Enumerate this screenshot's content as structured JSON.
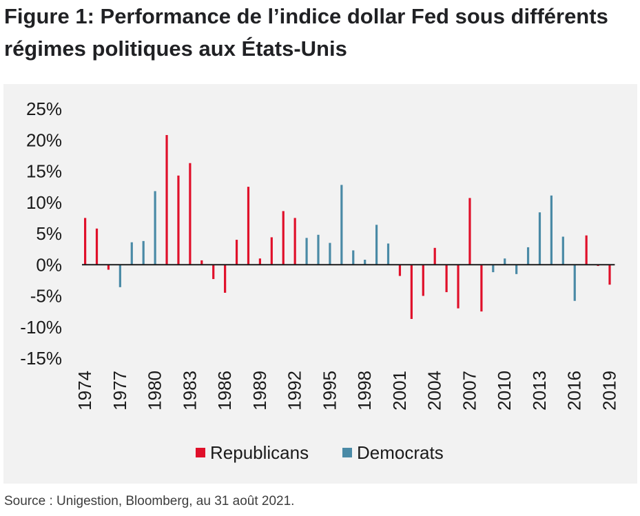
{
  "title": "Figure 1: Performance de l’indice dollar Fed sous différents régimes politiques aux États-Unis",
  "source": "Source : Unigestion, Bloomberg, au 31 août 2021.",
  "colors": {
    "Republicans": "#e0102a",
    "Democrats": "#4a8aa6",
    "panel": "#f2f2f2",
    "axis": "#1a1a1a"
  },
  "chart_data": {
    "type": "bar",
    "title": "",
    "xlabel": "",
    "ylabel": "",
    "ylim": [
      -15,
      25
    ],
    "y_ticks": [
      "25%",
      "20%",
      "15%",
      "10%",
      "5%",
      "0%",
      "-5%",
      "-10%",
      "-15%"
    ],
    "y_tick_values": [
      25,
      20,
      15,
      10,
      5,
      0,
      -5,
      -10,
      -15
    ],
    "x_tick_labels": [
      "1974",
      "1977",
      "1980",
      "1983",
      "1986",
      "1989",
      "1992",
      "1995",
      "1998",
      "2001",
      "2004",
      "2007",
      "2010",
      "2013",
      "2016",
      "2019"
    ],
    "grid": false,
    "legend_position": "bottom",
    "legend": [
      "Republicans",
      "Democrats"
    ],
    "categories": [
      1974,
      1975,
      1976,
      1977,
      1978,
      1979,
      1980,
      1981,
      1982,
      1983,
      1984,
      1985,
      1986,
      1987,
      1988,
      1989,
      1990,
      1991,
      1992,
      1993,
      1994,
      1995,
      1996,
      1997,
      1998,
      1999,
      2000,
      2001,
      2002,
      2003,
      2004,
      2005,
      2006,
      2007,
      2008,
      2009,
      2010,
      2011,
      2012,
      2013,
      2014,
      2015,
      2016,
      2017,
      2018,
      2019
    ],
    "series": [
      {
        "name": "Republicans",
        "values": [
          7.5,
          5.8,
          -0.8,
          null,
          null,
          null,
          null,
          20.8,
          14.3,
          16.3,
          0.7,
          -2.3,
          -4.5,
          4.0,
          12.5,
          1.0,
          4.4,
          8.6,
          7.5,
          null,
          null,
          null,
          null,
          null,
          null,
          null,
          null,
          -1.8,
          -8.7,
          -5.0,
          2.7,
          -4.4,
          -7.0,
          10.7,
          -7.5,
          null,
          null,
          null,
          null,
          null,
          null,
          null,
          null,
          4.7,
          -0.2,
          -3.2
        ]
      },
      {
        "name": "Democrats",
        "values": [
          null,
          null,
          null,
          -3.6,
          3.6,
          3.8,
          11.8,
          null,
          null,
          null,
          null,
          null,
          null,
          null,
          null,
          null,
          null,
          null,
          null,
          4.3,
          4.8,
          3.5,
          12.8,
          2.3,
          0.8,
          6.4,
          3.4,
          null,
          null,
          null,
          null,
          null,
          null,
          null,
          null,
          -1.2,
          1.0,
          -1.5,
          2.8,
          8.4,
          11.1,
          4.5,
          -5.8,
          null,
          null,
          null
        ]
      }
    ]
  }
}
